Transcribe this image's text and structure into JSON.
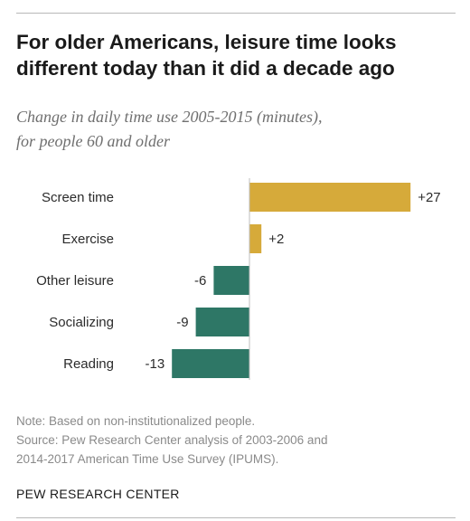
{
  "title": "For older Americans, leisure time looks different today than it did a decade ago",
  "subtitle_lines": [
    "Change in daily time use 2005-2015 (minutes),",
    "for people 60 and older"
  ],
  "chart_data": {
    "type": "bar",
    "orientation": "horizontal",
    "title": "For older Americans, leisure time looks different today than it did a decade ago",
    "subtitle": "Change in daily time use 2005-2015 (minutes), for people 60 and older",
    "categories": [
      "Screen time",
      "Exercise",
      "Other leisure",
      "Socializing",
      "Reading"
    ],
    "values": [
      27,
      2,
      -6,
      -9,
      -13
    ],
    "value_labels": [
      "+27",
      "+2",
      "-6",
      "-9",
      "-13"
    ],
    "colors": {
      "positive": "#d6aa3a",
      "negative": "#2e7766"
    },
    "xlim": [
      -13,
      27
    ],
    "grid": false,
    "legend": "none"
  },
  "notes": [
    "Note: Based on non-institutionalized people.",
    "Source: Pew Research Center analysis of 2003-2006 and",
    "2014-2017 American Time Use Survey (IPUMS)."
  ],
  "brand": "PEW RESEARCH CENTER"
}
